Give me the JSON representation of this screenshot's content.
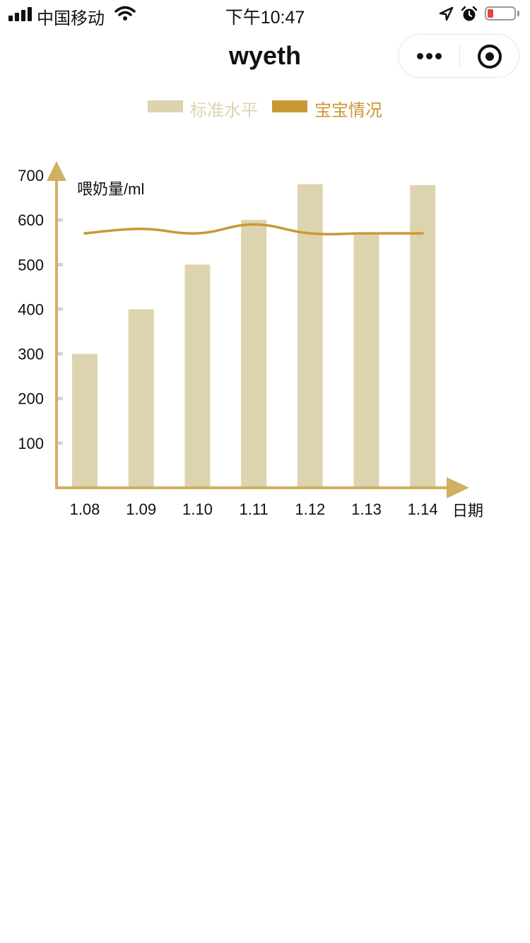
{
  "status_bar": {
    "carrier": "中国移动",
    "time": "下午10:47"
  },
  "nav": {
    "title": "wyeth"
  },
  "colors": {
    "bar": "#ddd4af",
    "line": "#c99836",
    "axis": "#cfb161",
    "tick_mark": "#d3d3d3"
  },
  "chart_data": {
    "type": "bar",
    "legend": [
      {
        "name": "标准水平",
        "type": "bar",
        "color": "#ddd4af"
      },
      {
        "name": "宝宝情况",
        "type": "line",
        "color": "#c99836"
      }
    ],
    "legend_position": "top-center",
    "categories": [
      "1.08",
      "1.09",
      "1.10",
      "1.11",
      "1.12",
      "1.13",
      "1.14"
    ],
    "series": [
      {
        "name": "标准水平",
        "type": "bar",
        "values": [
          300,
          400,
          500,
          600,
          680,
          570,
          678
        ]
      },
      {
        "name": "宝宝情况",
        "type": "line",
        "values": [
          570,
          580,
          570,
          590,
          570,
          570,
          570
        ]
      }
    ],
    "ylabel": "喂奶量/ml",
    "xlabel": "日期",
    "ylim": [
      0,
      700
    ],
    "yticks": [
      100,
      200,
      300,
      400,
      500,
      600,
      700
    ],
    "grid": false
  }
}
